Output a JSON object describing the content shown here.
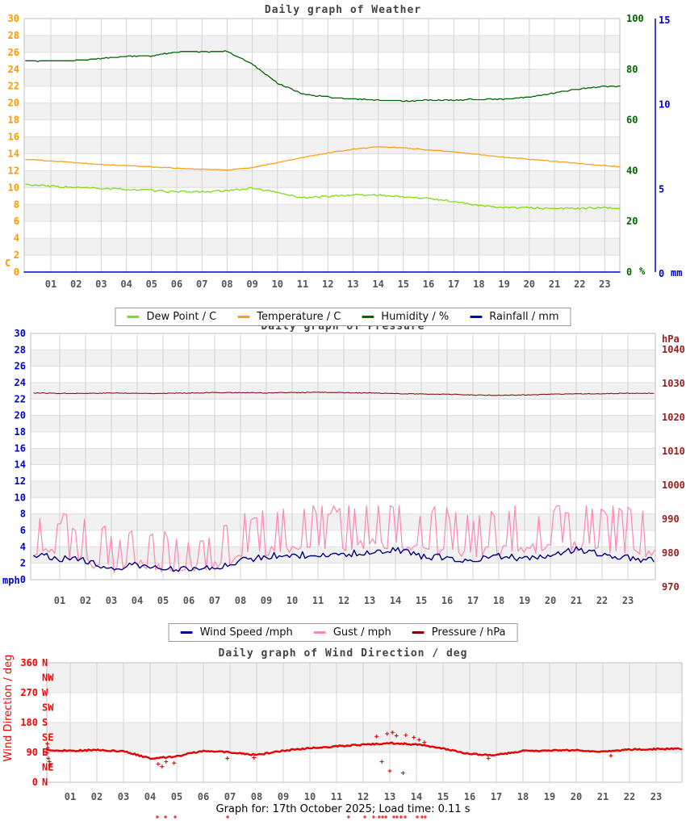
{
  "footer": {
    "text": "Graph for: 17th October 2025; Load time: 0.11 s"
  },
  "colors": {
    "dew_point": "#7fdd11",
    "temperature": "#ffa013",
    "temperature_axis": "#ff9900",
    "humidity": "#006600",
    "rainfall": "#0000cc",
    "wind_speed": "#000080",
    "gust": "#ff85b5",
    "pressure_line": "#7f0000",
    "pressure_axis": "#992020",
    "direction_line": "#e60000",
    "direction_axis": "#ff0000",
    "x_labels": "#555555",
    "band": "#f1f1f1",
    "hgrid": "#e0e0e0",
    "vgrid": "#d4d4d4",
    "border": "#c0c0c0"
  },
  "chart_data": [
    {
      "type": "line",
      "title": "Daily graph of Weather",
      "x_labels": [
        "01",
        "02",
        "03",
        "04",
        "05",
        "06",
        "07",
        "08",
        "09",
        "10",
        "11",
        "12",
        "13",
        "14",
        "15",
        "16",
        "17",
        "18",
        "19",
        "20",
        "21",
        "22",
        "23"
      ],
      "left_axis": {
        "unit": "C",
        "min": 0,
        "max": 30,
        "step": 2
      },
      "right_axis_humidity": {
        "unit": "%",
        "ticks": [
          100,
          80,
          60,
          40,
          20,
          0
        ]
      },
      "right_axis_rain": {
        "unit": "mm",
        "ticks": [
          15,
          10,
          5,
          0
        ]
      },
      "legend": [
        {
          "label": "Dew Point / C",
          "color": "#7fdd11"
        },
        {
          "label": "Temperature / C",
          "color": "#ffa013"
        },
        {
          "label": "Humidity / %",
          "color": "#006600"
        },
        {
          "label": "Rainfall / mm",
          "color": "#0000cc"
        }
      ],
      "series": [
        {
          "name": "Dew Point / C",
          "unit": "C",
          "hourly": [
            10.35,
            10.15,
            10.0,
            9.9,
            9.8,
            9.65,
            9.5,
            9.5,
            9.6,
            9.95,
            9.4,
            8.8,
            8.95,
            9.15,
            9.1,
            8.9,
            8.7,
            8.35,
            7.9,
            7.65,
            7.6,
            7.5,
            7.55,
            7.6,
            7.5
          ]
        },
        {
          "name": "Temperature / C",
          "unit": "C",
          "hourly": [
            13.35,
            13.15,
            12.95,
            12.75,
            12.6,
            12.45,
            12.3,
            12.15,
            12.1,
            12.35,
            12.95,
            13.55,
            14.1,
            14.55,
            14.85,
            14.7,
            14.45,
            14.2,
            13.9,
            13.6,
            13.35,
            13.1,
            12.85,
            12.6,
            12.35
          ]
        },
        {
          "name": "Humidity / %",
          "unit": "%",
          "hourly": [
            83.3,
            83.3,
            83.4,
            84.2,
            85.2,
            85.3,
            86.8,
            87.0,
            87.0,
            82.0,
            74.5,
            70.2,
            69.0,
            68.3,
            67.8,
            67.5,
            67.8,
            67.8,
            68.2,
            68.3,
            69.0,
            70.7,
            72.3,
            73.2,
            73.5
          ]
        },
        {
          "name": "Rainfall / mm",
          "unit": "mm",
          "hourly": [
            0,
            0,
            0,
            0,
            0,
            0,
            0,
            0,
            0,
            0,
            0,
            0,
            0,
            0,
            0,
            0,
            0,
            0,
            0,
            0,
            0,
            0,
            0,
            0,
            0
          ]
        }
      ]
    },
    {
      "type": "line",
      "title": "Daily graph of Pressure",
      "title_occluded_by_legend": true,
      "x_labels": [
        "01",
        "02",
        "03",
        "04",
        "05",
        "06",
        "07",
        "08",
        "09",
        "10",
        "11",
        "12",
        "13",
        "14",
        "15",
        "16",
        "17",
        "18",
        "19",
        "20",
        "21",
        "22",
        "23"
      ],
      "left_axis": {
        "unit": "mph",
        "min": 0,
        "max": 30,
        "step": 2
      },
      "right_axis": {
        "unit": "hPa",
        "min": 970,
        "max": 1040,
        "step": 10
      },
      "legend": [
        {
          "label": "Wind Speed /mph",
          "color": "#000080"
        },
        {
          "label": "Gust / mph",
          "color": "#ff85b5"
        },
        {
          "label": "Pressure / hPa",
          "color": "#7f0000"
        }
      ],
      "series": [
        {
          "name": "Gust / mph",
          "unit": "mph",
          "hourly": [
            4.6,
            4.2,
            3.4,
            2.6,
            3.1,
            2.6,
            2.6,
            2.9,
            3.9,
            4.6,
            5.1,
            4.9,
            5.3,
            5.6,
            5.3,
            4.9,
            4.6,
            4.3,
            4.7,
            4.9,
            5.1,
            5.3,
            4.9,
            4.6,
            4.2
          ]
        },
        {
          "name": "Wind Speed /mph",
          "unit": "mph",
          "hourly": [
            3.2,
            2.6,
            2.3,
            1.4,
            1.7,
            1.4,
            1.2,
            1.5,
            2.3,
            2.9,
            3.1,
            2.9,
            3.2,
            3.1,
            3.7,
            2.9,
            2.6,
            2.3,
            2.9,
            2.6,
            3.1,
            3.7,
            3.1,
            2.6,
            2.4
          ]
        },
        {
          "name": "Pressure / hPa",
          "unit": "hPa",
          "hourly": [
            1027.2,
            1027.1,
            1027.1,
            1027.2,
            1027.1,
            1027.1,
            1027.2,
            1027.3,
            1027.3,
            1027.2,
            1027.3,
            1027.4,
            1027.3,
            1027.2,
            1027.0,
            1026.9,
            1026.8,
            1026.6,
            1026.5,
            1026.6,
            1026.8,
            1026.9,
            1027.0,
            1027.1,
            1027.1
          ]
        }
      ]
    },
    {
      "type": "scatter-line",
      "title": "Daily graph of Wind Direction / deg",
      "x_labels": [
        "01",
        "02",
        "03",
        "04",
        "05",
        "06",
        "07",
        "08",
        "09",
        "10",
        "11",
        "12",
        "13",
        "14",
        "15",
        "16",
        "17",
        "18",
        "19",
        "20",
        "21",
        "22",
        "23"
      ],
      "y_axis": {
        "label": "Wind Direction / deg",
        "min": 0,
        "max": 360,
        "ticks": [
          360,
          270,
          180,
          90,
          0
        ],
        "compass": [
          "N",
          "NW",
          "W",
          "SW",
          "S",
          "SE",
          "E",
          "NE",
          "N"
        ]
      },
      "series": [
        {
          "name": "Wind Direction / deg",
          "unit": "deg",
          "hourly": [
            97,
            95,
            97,
            93,
            72,
            78,
            95,
            90,
            82,
            95,
            103,
            108,
            113,
            118,
            114,
            102,
            85,
            82,
            95,
            95,
            97,
            92,
            99,
            100,
            101
          ]
        }
      ],
      "scatter_points": [
        [
          0.14,
          116
        ],
        [
          0.16,
          104
        ],
        [
          0.13,
          88
        ],
        [
          0.18,
          72
        ],
        [
          0.22,
          62
        ],
        [
          0.25,
          52
        ],
        [
          4.3,
          55
        ],
        [
          4.45,
          47
        ],
        [
          4.6,
          62
        ],
        [
          4.9,
          58
        ],
        [
          6.9,
          72
        ],
        [
          7.9,
          74
        ],
        [
          12.5,
          138
        ],
        [
          12.7,
          62
        ],
        [
          12.9,
          146
        ],
        [
          13.0,
          34
        ],
        [
          13.1,
          150
        ],
        [
          13.25,
          140
        ],
        [
          13.5,
          28
        ],
        [
          13.6,
          142
        ],
        [
          13.9,
          135
        ],
        [
          14.1,
          128
        ],
        [
          14.3,
          120
        ],
        [
          16.7,
          72
        ],
        [
          21.3,
          80
        ]
      ],
      "below_axis_mark_hours": [
        4.27,
        4.58,
        4.94,
        6.91,
        11.45,
        12.06,
        12.39,
        12.6,
        12.73,
        12.85,
        13.15,
        13.27,
        13.42,
        13.58,
        14.03,
        14.21,
        14.33
      ]
    }
  ]
}
